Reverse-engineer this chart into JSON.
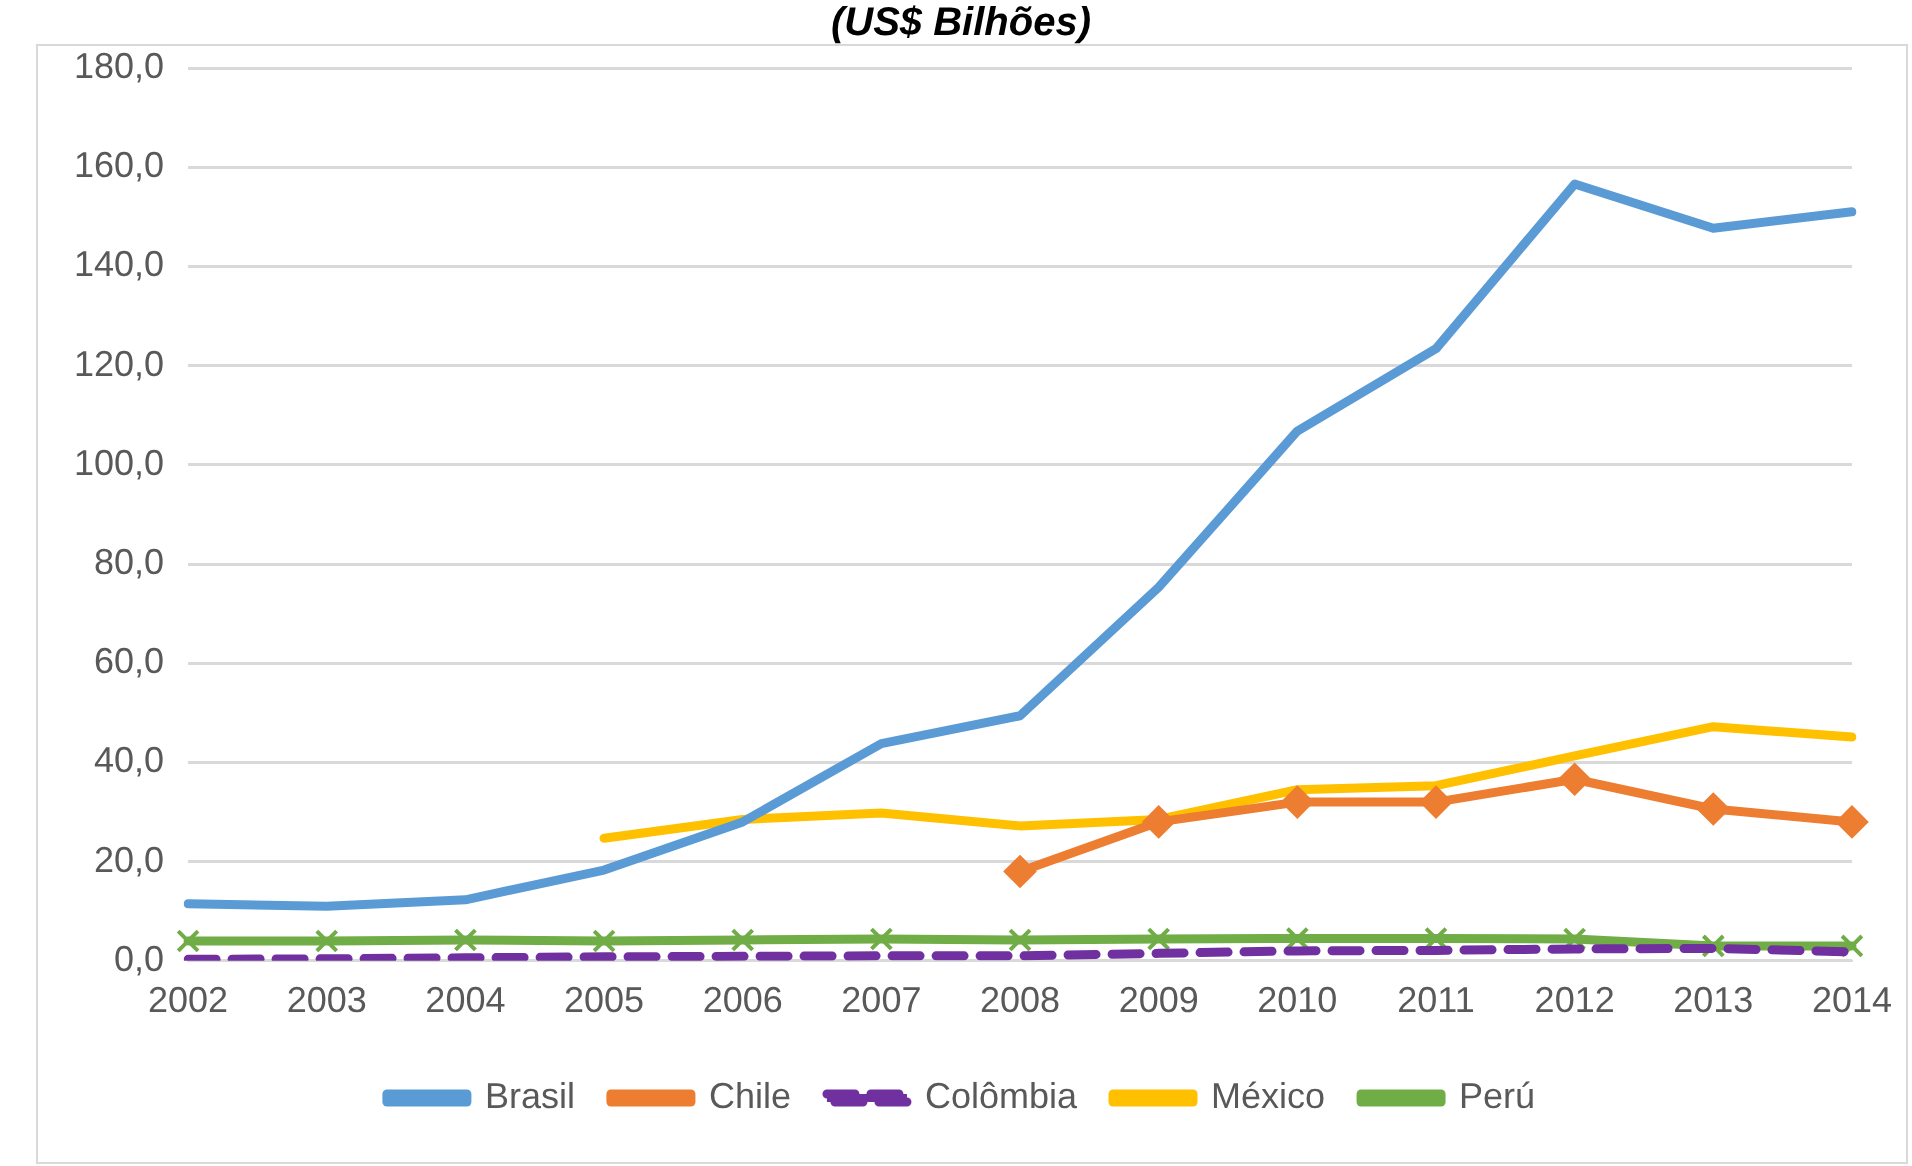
{
  "chart_data": {
    "type": "line",
    "title": "(US$ Bilhões)",
    "categories": [
      "2002",
      "2003",
      "2004",
      "2005",
      "2006",
      "2007",
      "2008",
      "2009",
      "2010",
      "2011",
      "2012",
      "2013",
      "2014"
    ],
    "series": [
      {
        "name": "Brasil",
        "color": "#5b9bd5",
        "marker": "none",
        "line_style": "solid",
        "values": [
          11.5,
          11,
          12.3,
          18.3,
          28,
          43.8,
          49.4,
          75.3,
          106.8,
          123.4,
          156.6,
          147.7,
          151
        ]
      },
      {
        "name": "Chile",
        "color": "#ed7d31",
        "marker": "diamond",
        "line_style": "solid",
        "values": [
          null,
          null,
          null,
          null,
          null,
          null,
          18,
          28,
          32,
          32,
          36.6,
          30.6,
          28
        ]
      },
      {
        "name": "Colômbia",
        "color": "#7030a0",
        "marker": "none",
        "line_style": "dashed",
        "values": [
          0.3,
          0.4,
          0.6,
          0.8,
          0.9,
          1,
          1,
          1.5,
          2,
          2.1,
          2.4,
          2.5,
          1.8
        ]
      },
      {
        "name": "México",
        "color": "#ffc000",
        "marker": "none",
        "line_style": "solid",
        "values": [
          null,
          null,
          null,
          24.7,
          28.5,
          29.8,
          27.2,
          28.5,
          34.5,
          35.3,
          41.3,
          47.2,
          45.1
        ]
      },
      {
        "name": "Perú",
        "color": "#70ad47",
        "marker": "cross",
        "line_style": "solid",
        "values": [
          4,
          4,
          4.2,
          4,
          4.2,
          4.4,
          4.2,
          4.4,
          4.5,
          4.5,
          4.4,
          3,
          3
        ]
      }
    ],
    "ylim": [
      0,
      180
    ],
    "yticks": [
      {
        "value": 0,
        "label": "0,0"
      },
      {
        "value": 20,
        "label": "20,0"
      },
      {
        "value": 40,
        "label": "40,0"
      },
      {
        "value": 60,
        "label": "60,0"
      },
      {
        "value": 80,
        "label": "80,0"
      },
      {
        "value": 100,
        "label": "100,0"
      },
      {
        "value": 120,
        "label": "120,0"
      },
      {
        "value": 140,
        "label": "140,0"
      },
      {
        "value": 160,
        "label": "160,0"
      },
      {
        "value": 180,
        "label": "180,0"
      }
    ],
    "grid": "y",
    "legend": "bottom"
  }
}
